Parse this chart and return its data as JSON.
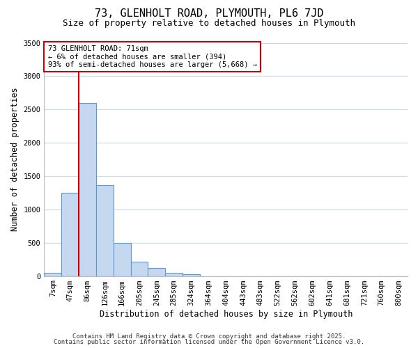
{
  "title": "73, GLENHOLT ROAD, PLYMOUTH, PL6 7JD",
  "subtitle": "Size of property relative to detached houses in Plymouth",
  "xlabel": "Distribution of detached houses by size in Plymouth",
  "ylabel": "Number of detached properties",
  "bar_labels": [
    "7sqm",
    "47sqm",
    "86sqm",
    "126sqm",
    "166sqm",
    "205sqm",
    "245sqm",
    "285sqm",
    "324sqm",
    "364sqm",
    "404sqm",
    "443sqm",
    "483sqm",
    "522sqm",
    "562sqm",
    "602sqm",
    "641sqm",
    "681sqm",
    "721sqm",
    "760sqm",
    "800sqm"
  ],
  "bar_values": [
    50,
    1250,
    2600,
    1360,
    500,
    210,
    125,
    50,
    30,
    0,
    0,
    0,
    0,
    0,
    0,
    0,
    0,
    0,
    0,
    0,
    0
  ],
  "bar_color": "#c5d8f0",
  "bar_edge_color": "#5b9bd5",
  "ylim": [
    0,
    3500
  ],
  "yticks": [
    0,
    500,
    1000,
    1500,
    2000,
    2500,
    3000,
    3500
  ],
  "property_line_color": "#cc0000",
  "annotation_title": "73 GLENHOLT ROAD: 71sqm",
  "annotation_line1": "← 6% of detached houses are smaller (394)",
  "annotation_line2": "93% of semi-detached houses are larger (5,668) →",
  "annotation_box_color": "#cc0000",
  "footer1": "Contains HM Land Registry data © Crown copyright and database right 2025.",
  "footer2": "Contains public sector information licensed under the Open Government Licence v3.0.",
  "background_color": "#ffffff",
  "grid_color": "#c8d8e8",
  "title_fontsize": 11,
  "subtitle_fontsize": 9,
  "axis_label_fontsize": 8.5,
  "tick_fontsize": 7.5,
  "annotation_fontsize": 7.5,
  "footer_fontsize": 6.5
}
